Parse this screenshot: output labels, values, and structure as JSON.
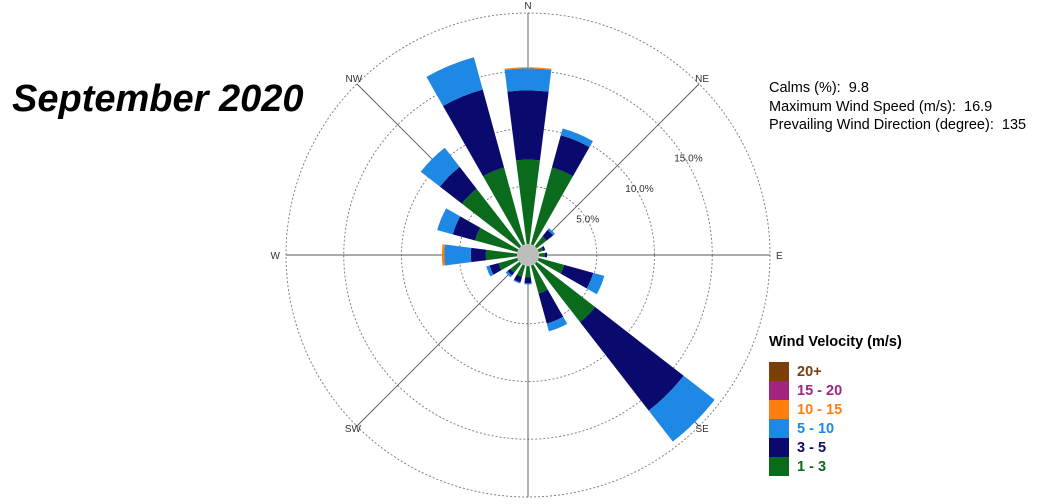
{
  "title": "September 2020",
  "stats": [
    {
      "label": "Calms (%):",
      "value": "9.8"
    },
    {
      "label": "Maximum Wind Speed  (m/s):",
      "value": "16.9"
    },
    {
      "label": "Prevailing  Wind Direction (degree):",
      "value": "135"
    }
  ],
  "legend": {
    "title": "Wind Velocity (m/s)",
    "items": [
      {
        "label": "20+",
        "color": "#7b3f0a"
      },
      {
        "label": "15 - 20",
        "color": "#a3247e"
      },
      {
        "label": "10 - 15",
        "color": "#ff7f0e"
      },
      {
        "label": "5 - 10",
        "color": "#1e88e5"
      },
      {
        "label": "3 - 5",
        "color": "#0a0a6e"
      },
      {
        "label": "1 - 3",
        "color": "#0b6b1c"
      }
    ]
  },
  "chart_data": {
    "type": "wind-rose",
    "directions": [
      "N",
      "NNE",
      "NE",
      "ENE",
      "E",
      "ESE",
      "SE",
      "SSE",
      "S",
      "SSW",
      "SW",
      "WSW",
      "W",
      "WNW",
      "NW",
      "NNW"
    ],
    "direction_degrees": [
      0,
      22.5,
      45,
      67.5,
      90,
      112.5,
      135,
      157.5,
      180,
      202.5,
      225,
      247.5,
      270,
      292.5,
      315,
      337.5
    ],
    "compass_labels": [
      "N",
      "NE",
      "E",
      "SE",
      "S",
      "SW",
      "W",
      "NW"
    ],
    "radial_ticks": [
      {
        "value": 5,
        "label": "5.0%"
      },
      {
        "value": 10,
        "label": "10.0%"
      },
      {
        "value": 15,
        "label": "15.0%"
      }
    ],
    "radial_max": 20,
    "units": "%",
    "series": [
      {
        "name": "1 - 3",
        "values": [
          7.3,
          6.9,
          1.1,
          0.4,
          0.5,
          2.3,
          6.4,
          2.5,
          1.0,
          1.0,
          1.0,
          1.7,
          2.7,
          3.8,
          6.3,
          6.9
        ]
      },
      {
        "name": "3 - 5",
        "values": [
          6.0,
          2.9,
          0.7,
          0.2,
          0.2,
          2.6,
          9.7,
          2.7,
          0.5,
          0.5,
          0.3,
          0.8,
          1.3,
          2.0,
          2.4,
          7.0
        ]
      },
      {
        "name": "5 - 10",
        "values": [
          1.9,
          0.6,
          0.2,
          0.0,
          0.0,
          1.0,
          3.4,
          0.7,
          0.1,
          0.1,
          0.2,
          0.3,
          2.3,
          1.4,
          2.1,
          2.9
        ]
      },
      {
        "name": "10 - 15",
        "values": [
          0.1,
          0.0,
          0.0,
          0.0,
          0.0,
          0.0,
          0.0,
          0.0,
          0.0,
          0.0,
          0.0,
          0.0,
          0.2,
          0.0,
          0.0,
          0.0
        ]
      },
      {
        "name": "15 - 20",
        "values": [
          0.0,
          0.0,
          0.0,
          0.0,
          0.0,
          0.0,
          0.0,
          0.0,
          0.0,
          0.0,
          0.0,
          0.0,
          0.0,
          0.0,
          0.0,
          0.0
        ]
      },
      {
        "name": "20+",
        "values": [
          0.0,
          0.0,
          0.0,
          0.0,
          0.0,
          0.0,
          0.0,
          0.0,
          0.0,
          0.0,
          0.0,
          0.0,
          0.0,
          0.0,
          0.0,
          0.0
        ]
      }
    ],
    "grid": true,
    "legend_position": "bottom-right",
    "calm_circle": true
  }
}
